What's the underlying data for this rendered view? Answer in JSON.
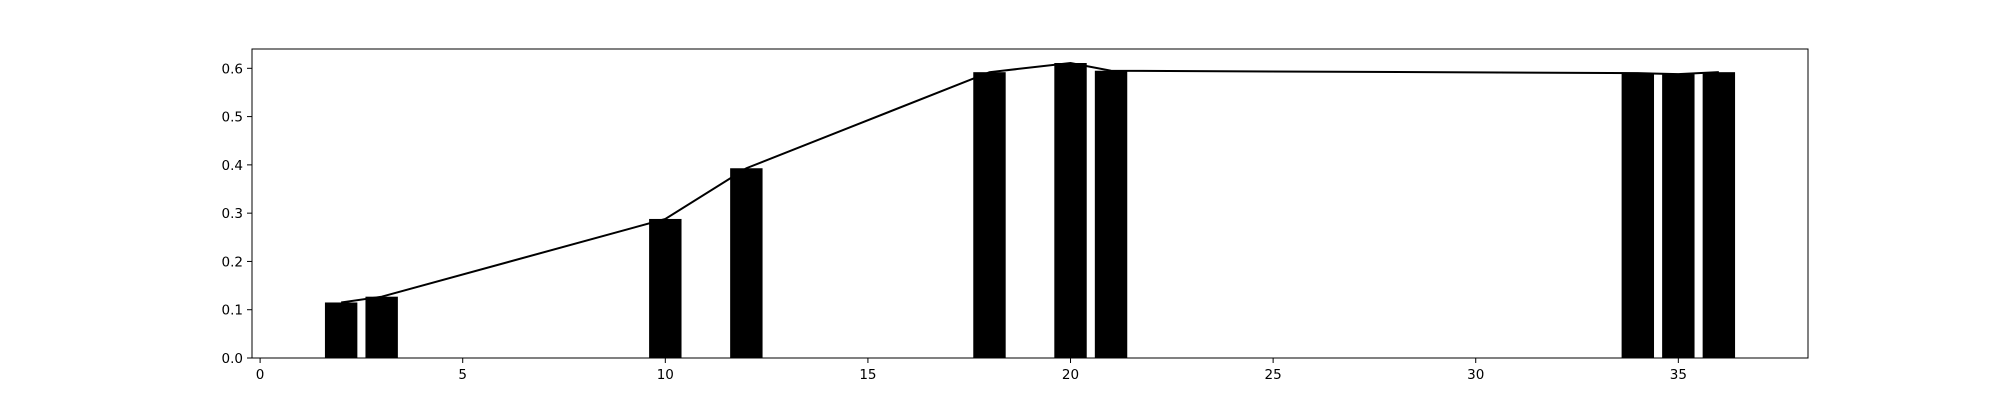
{
  "chart_data": {
    "type": "bar",
    "title": "",
    "xlabel": "",
    "ylabel": "",
    "xlim": [
      -0.2,
      38.2
    ],
    "ylim": [
      0.0,
      0.64
    ],
    "grid": false,
    "bar_width": 0.8,
    "x": [
      2,
      3,
      10,
      12,
      18,
      20,
      21,
      34,
      35,
      36
    ],
    "values": [
      0.115,
      0.127,
      0.288,
      0.393,
      0.592,
      0.611,
      0.595,
      0.59,
      0.588,
      0.592
    ],
    "x_ticks": [
      0,
      5,
      10,
      15,
      20,
      25,
      30,
      35
    ],
    "y_ticks": [
      0.0,
      0.1,
      0.2,
      0.3,
      0.4,
      0.5,
      0.6
    ],
    "x_tick_labels": [
      "0",
      "5",
      "10",
      "15",
      "20",
      "25",
      "30",
      "35"
    ],
    "y_tick_labels": [
      "0.0",
      "0.1",
      "0.2",
      "0.3",
      "0.4",
      "0.5",
      "0.6"
    ],
    "overlay_line": {
      "type": "line",
      "x": [
        2,
        3,
        10,
        12,
        18,
        20,
        21,
        34,
        35,
        36
      ],
      "values": [
        0.115,
        0.127,
        0.288,
        0.393,
        0.592,
        0.611,
        0.595,
        0.59,
        0.588,
        0.592
      ]
    },
    "colors": {
      "bar": "#000000",
      "line": "#000000",
      "axes": "#000000"
    }
  }
}
